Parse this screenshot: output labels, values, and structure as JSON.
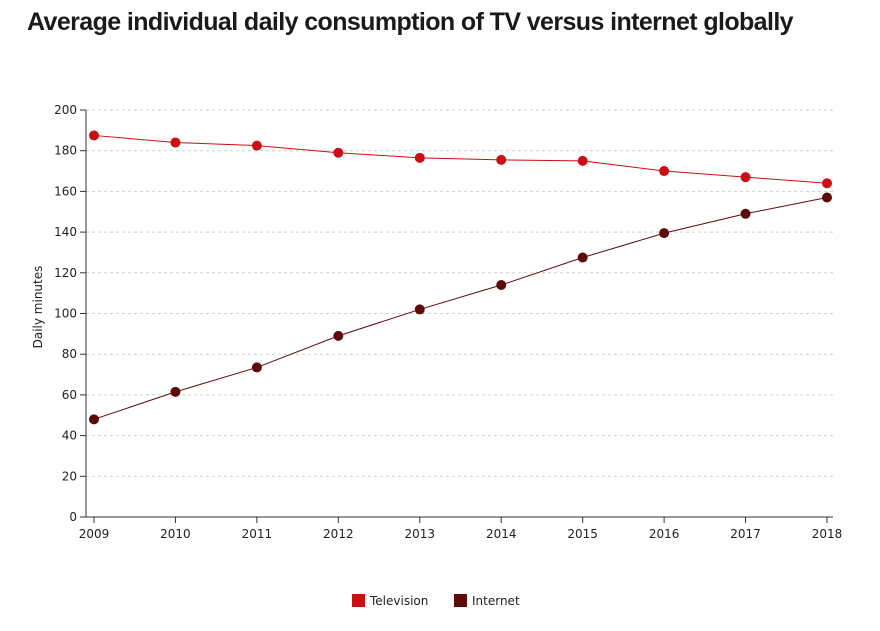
{
  "chart_data": {
    "type": "line",
    "title": "Average individual daily consumption of TV versus internet globally",
    "xlabel": "",
    "ylabel": "Daily minutes",
    "x": [
      "2009",
      "2010",
      "2011",
      "2012",
      "2013",
      "2014",
      "2015",
      "2016",
      "2017",
      "2018"
    ],
    "ylim": [
      0,
      200
    ],
    "yticks": [
      0,
      20,
      40,
      60,
      80,
      100,
      120,
      140,
      160,
      180,
      200
    ],
    "grid": true,
    "legend_position": "bottom",
    "series": [
      {
        "name": "Television",
        "color": "#cc0f14",
        "values": [
          187.5,
          184,
          182.5,
          179,
          176.5,
          175.5,
          175,
          170,
          167,
          164
        ]
      },
      {
        "name": "Internet",
        "color": "#5e0a0a",
        "values": [
          48,
          61.5,
          73.5,
          89,
          102,
          114,
          127.5,
          139.5,
          149,
          157
        ]
      }
    ]
  }
}
